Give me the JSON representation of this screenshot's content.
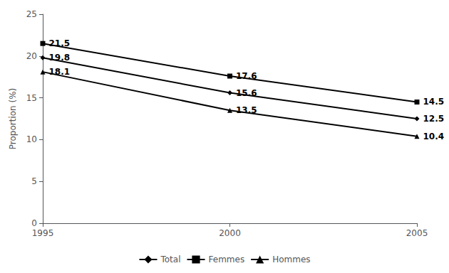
{
  "chart_data": {
    "type": "line",
    "ylabel": "Proportion (%)",
    "x": [
      1995,
      2000,
      2005
    ],
    "series": [
      {
        "name": "Total",
        "color": "#000000",
        "marker": "diamond",
        "values": [
          19.8,
          15.6,
          12.5
        ]
      },
      {
        "name": "Femmes",
        "color": "#000000",
        "marker": "square",
        "values": [
          21.5,
          17.6,
          14.5
        ]
      },
      {
        "name": "Hommes",
        "color": "#000000",
        "marker": "triangle",
        "values": [
          18.1,
          13.5,
          10.4
        ]
      }
    ],
    "xlim": [
      1995,
      2005
    ],
    "xticks": [
      1995,
      2000,
      2005
    ],
    "ylim": [
      0,
      25
    ],
    "yticks": [
      0,
      5,
      10,
      15,
      20,
      25
    ],
    "grid": false,
    "legend": "bottom",
    "data_labels": true
  }
}
